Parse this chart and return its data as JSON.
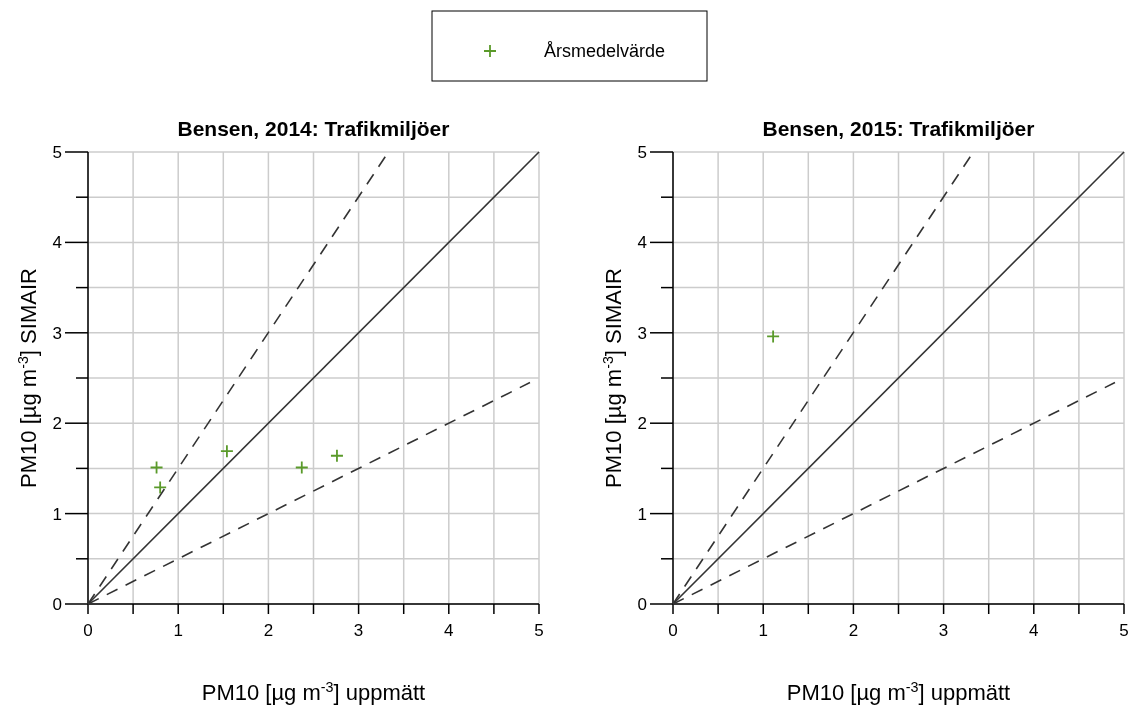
{
  "chart_data": [
    {
      "type": "scatter",
      "title": "Bensen, 2014: Trafikmiljöer",
      "xlabel": "PM10 [µg m$^{-3}$] uppmätt",
      "ylabel": "PM10 [µg m$^{-3}$] SIMAIR",
      "xlim": [
        0,
        5
      ],
      "ylim": [
        0,
        5
      ],
      "xticks": [
        0,
        {
          "value": 0.5,
          "label": null
        },
        1,
        {
          "value": 1.5,
          "label": null
        },
        2,
        {
          "value": 2.5,
          "label": null
        },
        3,
        {
          "value": 3.5,
          "label": null
        },
        4,
        {
          "value": 4.5,
          "label": null
        },
        5
      ],
      "yticks": [
        0,
        {
          "value": 0.5,
          "label": null
        },
        1,
        {
          "value": 1.5,
          "label": null
        },
        2,
        {
          "value": 2.5,
          "label": null
        },
        3,
        {
          "value": 3.5,
          "label": null
        },
        4,
        {
          "value": 4.5,
          "label": null
        },
        5
      ],
      "grid": true,
      "legend": "top",
      "series": [
        {
          "type": "line",
          "color": "#333333",
          "line_style": "solid",
          "x": [
            0,
            5
          ],
          "values": [
            0,
            5
          ]
        },
        {
          "type": "line",
          "color": "#333333",
          "line_style": "dashed",
          "x": [
            0,
            3.33
          ],
          "values": [
            0,
            5
          ]
        },
        {
          "type": "line",
          "color": "#333333",
          "line_style": "dashed",
          "x": [
            0,
            4.9
          ],
          "values": [
            0,
            2.45
          ]
        },
        {
          "name": "Årsmedelvärde",
          "color": "#5a9a2a",
          "marker": "cross",
          "x": [
            0.76,
            0.8,
            1.54,
            2.37,
            2.76
          ],
          "values": [
            1.51,
            1.29,
            1.69,
            1.51,
            1.64
          ]
        }
      ]
    },
    {
      "type": "scatter",
      "title": "Bensen, 2015: Trafikmiljöer",
      "xlabel": "PM10 [µg m$^{-3}$] uppmätt",
      "ylabel": "PM10 [µg m$^{-3}$] SIMAIR",
      "xlim": [
        0,
        5
      ],
      "ylim": [
        0,
        5
      ],
      "xticks": [
        0,
        {
          "value": 0.5,
          "label": null
        },
        1,
        {
          "value": 1.5,
          "label": null
        },
        2,
        {
          "value": 2.5,
          "label": null
        },
        3,
        {
          "value": 3.5,
          "label": null
        },
        4,
        {
          "value": 4.5,
          "label": null
        },
        5
      ],
      "yticks": [
        0,
        {
          "value": 0.5,
          "label": null
        },
        1,
        {
          "value": 1.5,
          "label": null
        },
        2,
        {
          "value": 2.5,
          "label": null
        },
        3,
        {
          "value": 3.5,
          "label": null
        },
        4,
        {
          "value": 4.5,
          "label": null
        },
        5
      ],
      "grid": true,
      "series": [
        {
          "type": "line",
          "color": "#333333",
          "line_style": "solid",
          "x": [
            0,
            5
          ],
          "values": [
            0,
            5
          ]
        },
        {
          "type": "line",
          "color": "#333333",
          "line_style": "dashed",
          "x": [
            0,
            3.33
          ],
          "values": [
            0,
            5
          ]
        },
        {
          "type": "line",
          "color": "#333333",
          "line_style": "dashed",
          "x": [
            0,
            4.9
          ],
          "values": [
            0,
            2.45
          ]
        },
        {
          "color": "#5a9a2a",
          "marker": "cross",
          "x": [
            1.11
          ],
          "values": [
            2.96
          ]
        }
      ]
    }
  ]
}
